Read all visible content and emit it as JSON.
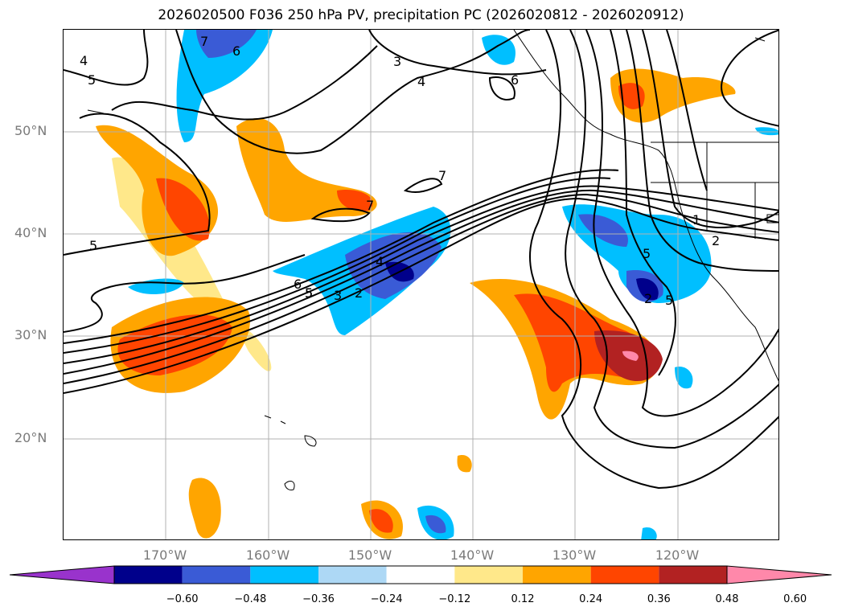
{
  "title": "2026020500 F036 250 hPa PV, precipitation PC (2026020812 - 2026020912)",
  "lat_labels": [
    "50°N",
    "40°N",
    "30°N",
    "20°N"
  ],
  "lon_labels": [
    "170°W",
    "160°W",
    "150°W",
    "140°W",
    "130°W",
    "120°W"
  ],
  "colorbar": {
    "ticks": [
      "−0.60",
      "−0.48",
      "−0.36",
      "−0.24",
      "−0.12",
      "0.12",
      "0.24",
      "0.36",
      "0.48",
      "0.60"
    ],
    "colors": [
      "#9933cc",
      "#00008b",
      "#3a5bd6",
      "#00bfff",
      "#add8f5",
      "#ffffff",
      "#ffe88a",
      "#ffa500",
      "#ff4500",
      "#b22222",
      "#ff88aa"
    ]
  },
  "contour_labels": [
    "7",
    "6",
    "5",
    "4",
    "3",
    "4",
    "6",
    "5",
    "7",
    "7",
    "5",
    "6",
    "5",
    "3",
    "2",
    "4",
    "1",
    "2",
    "5",
    "2",
    "5"
  ]
}
